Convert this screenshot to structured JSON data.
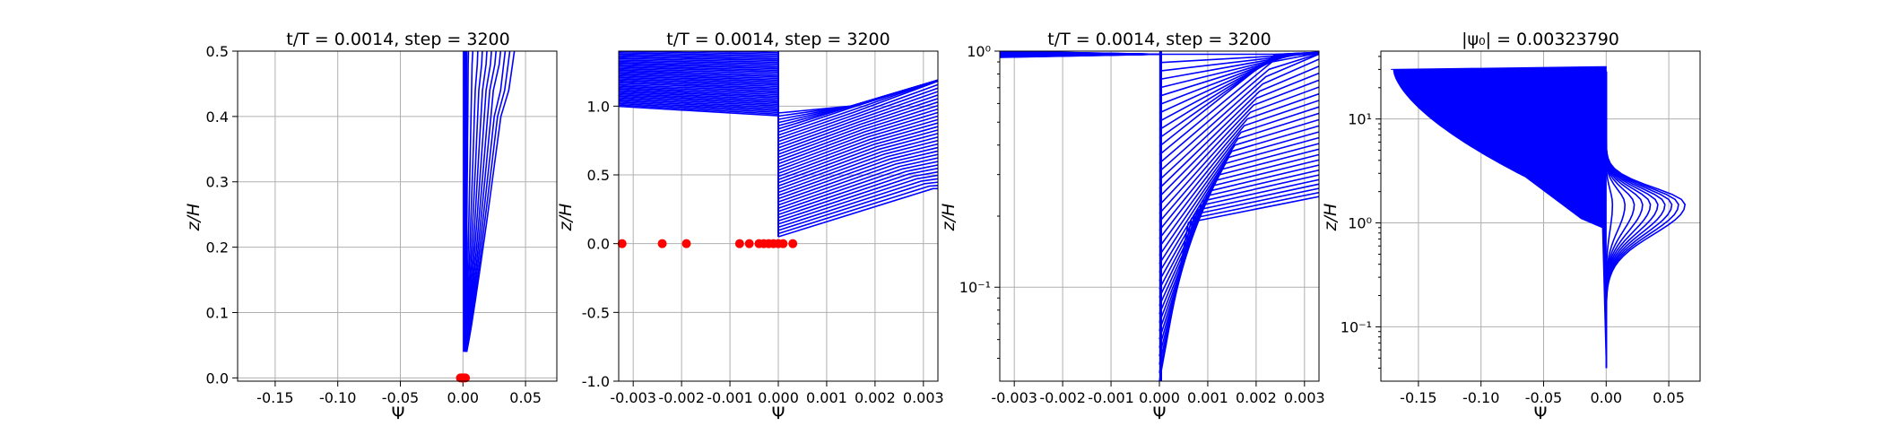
{
  "figure": {
    "panels": [
      {
        "title": "t/T = 0.0014, step = 3200",
        "xlabel": "Ψ",
        "ylabel": "z/H"
      },
      {
        "title": "t/T = 0.0014, step = 3200",
        "xlabel": "Ψ",
        "ylabel": "z/H"
      },
      {
        "title": "t/T = 0.0014, step = 3200",
        "xlabel": "Ψ",
        "ylabel": "z/H"
      },
      {
        "title": "|ψ₀| = 0.00323790",
        "xlabel": "Ψ",
        "ylabel": "z/H"
      }
    ]
  },
  "colors": {
    "profile": "#0000ff",
    "marker": "#ff0000",
    "grid": "#b0b0b0"
  },
  "chart_data": [
    {
      "type": "line",
      "title": "t/T = 0.0014, step = 3200",
      "xlabel": "Ψ",
      "ylabel": "z/H",
      "xlim": [
        -0.18,
        0.075
      ],
      "ylim": [
        -0.005,
        0.5
      ],
      "xscale": "linear",
      "yscale": "linear",
      "xticks": [
        "-0.15",
        "-0.10",
        "-0.05",
        "0.00",
        "0.05"
      ],
      "yticks": [
        "0.0",
        "0.1",
        "0.2",
        "0.3",
        "0.4",
        "0.5"
      ],
      "grid": true,
      "series_description": "fan of blue profiles from Ψ≈0.002 at z/H≈0.04 to Ψ≈0.04 at z/H=0.5",
      "markers": {
        "x": [
          -0.002,
          -0.001,
          0.0,
          0.001,
          0.002
        ],
        "y": [
          0,
          0,
          0,
          0,
          0
        ]
      }
    },
    {
      "type": "line",
      "title": "t/T = 0.0014, step = 3200",
      "xlabel": "Ψ",
      "ylabel": "z/H",
      "xlim": [
        -0.0033,
        0.0033
      ],
      "ylim": [
        -1.0,
        1.4
      ],
      "xscale": "linear",
      "yscale": "linear",
      "xticks": [
        "-0.003",
        "-0.002",
        "-0.001",
        "0.000",
        "0.001",
        "0.002",
        "0.003"
      ],
      "yticks": [
        "-1.0",
        "-0.5",
        "0.0",
        "0.5",
        "1.0"
      ],
      "grid": true,
      "series_description": "profiles clipped to ±0.0033, peaking near z/H≈0.3–0.5",
      "markers": {
        "x": [
          -0.00323,
          -0.0024,
          -0.0019,
          -0.0008,
          -0.0006,
          -0.0004,
          -0.0003,
          -0.0002,
          -0.0001,
          0.0,
          0.0001,
          0.0003
        ],
        "y": [
          0,
          0,
          0,
          0,
          0,
          0,
          0,
          0,
          0,
          0,
          0,
          0
        ]
      }
    },
    {
      "type": "line",
      "title": "t/T = 0.0014, step = 3200",
      "xlabel": "Ψ",
      "ylabel": "z/H",
      "xlim": [
        -0.0033,
        0.0033
      ],
      "ylim": [
        0.04,
        1.0
      ],
      "xscale": "linear",
      "yscale": "log",
      "xticks": [
        "-0.003",
        "-0.002",
        "-0.001",
        "0.000",
        "0.001",
        "0.002",
        "0.003"
      ],
      "yticks": [
        "10⁻¹",
        "10⁰"
      ],
      "grid": true,
      "series_description": "profiles on log z/H axis, clipped at Ψ=±0.0033"
    },
    {
      "type": "line",
      "title": "|ψ₀| = 0.00323790",
      "xlabel": "Ψ",
      "ylabel": "z/H",
      "xlim": [
        -0.18,
        0.075
      ],
      "ylim": [
        0.03,
        45
      ],
      "xscale": "linear",
      "yscale": "log",
      "xticks": [
        "-0.15",
        "-0.10",
        "-0.05",
        "0.00",
        "0.05"
      ],
      "yticks": [
        "10⁻¹",
        "10⁰",
        "10¹"
      ],
      "grid": true,
      "series_description": "profiles spanning Ψ from -0.17 to 0.065 with bulge near z/H≈1.5"
    }
  ]
}
